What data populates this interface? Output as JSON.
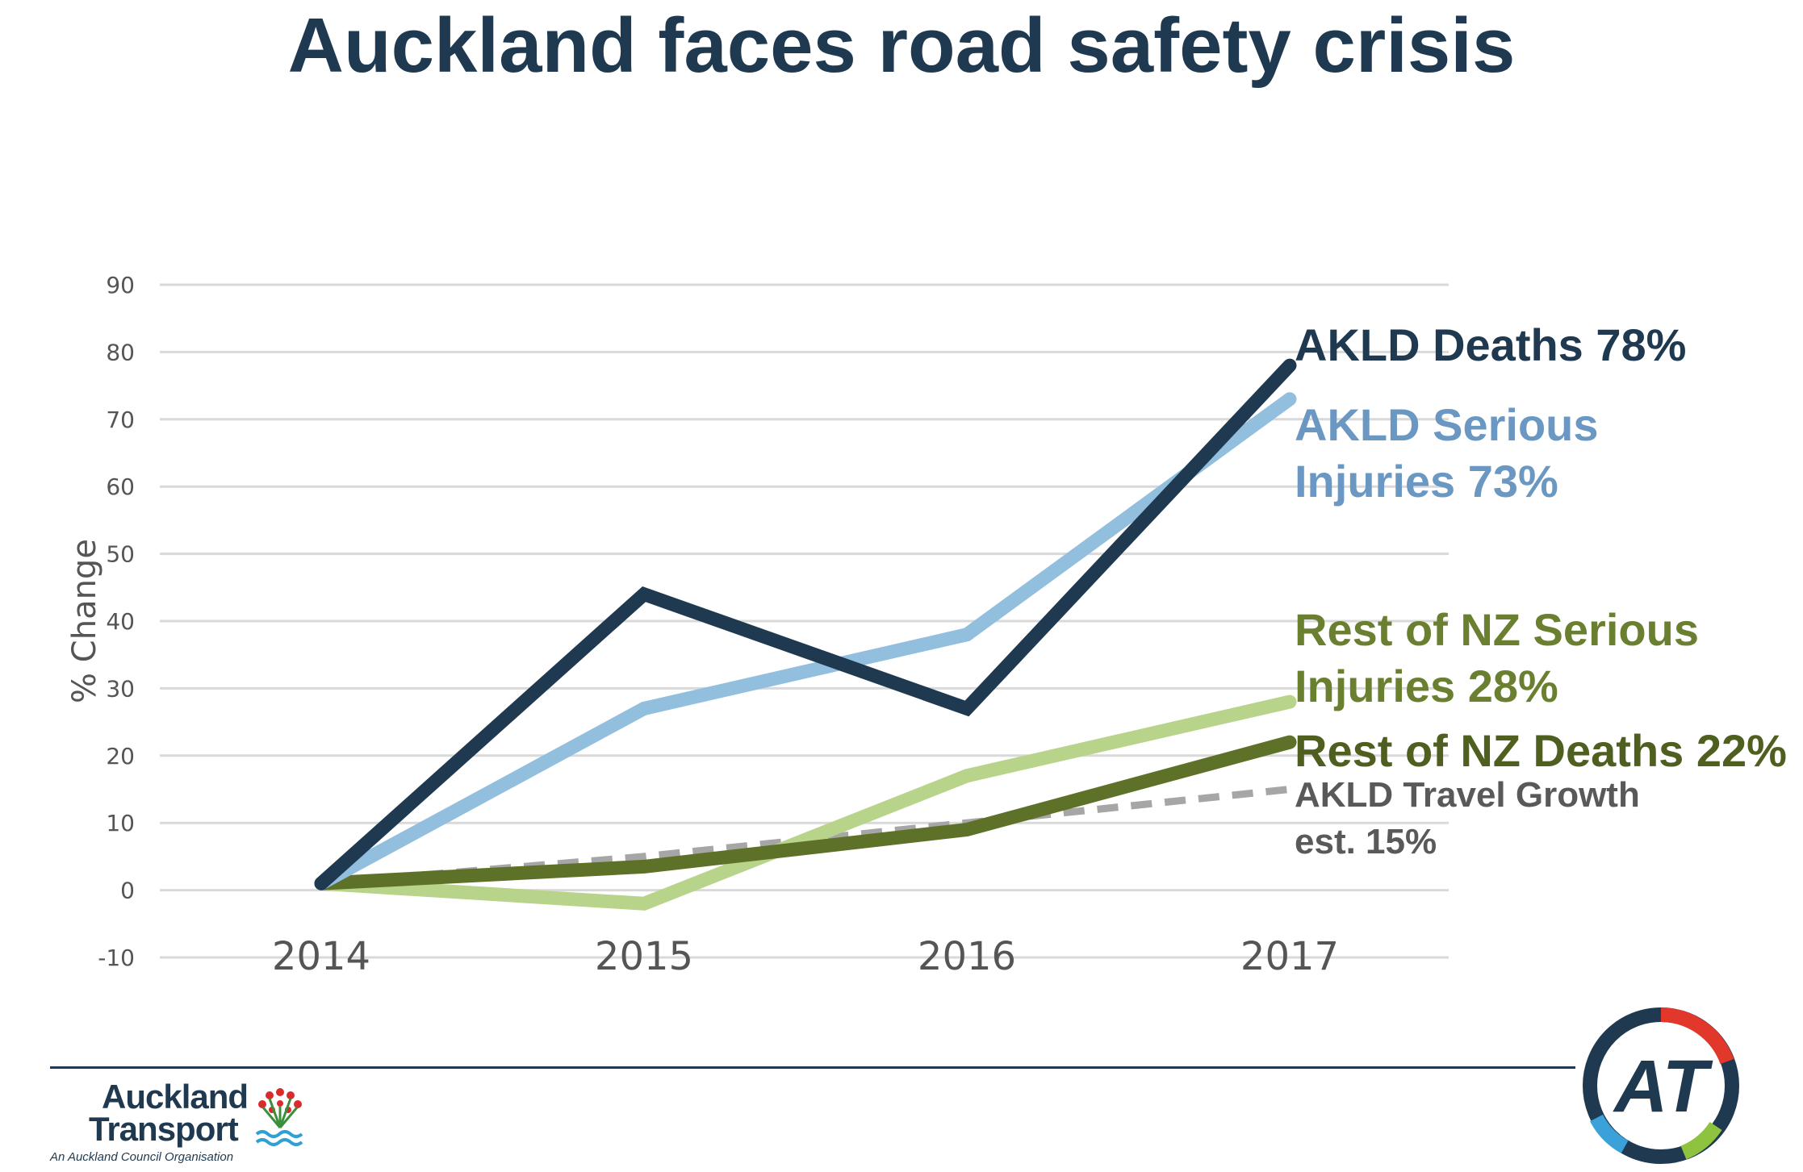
{
  "title": "Auckland faces road safety crisis",
  "chart_data": {
    "type": "line",
    "title": "Auckland faces road safety crisis",
    "xlabel": "",
    "ylabel": "% Change",
    "ylim": [
      -10,
      90
    ],
    "yticks": [
      90,
      80,
      70,
      60,
      50,
      40,
      30,
      20,
      10,
      0,
      -10
    ],
    "categories": [
      "2014",
      "2015",
      "2016",
      "2017"
    ],
    "grid": true,
    "series": [
      {
        "name": "AKLD Deaths",
        "label_lines": [
          "AKLD Deaths 78%"
        ],
        "values": [
          1,
          44,
          27,
          78
        ],
        "color": "#1f3a50",
        "dashed": false
      },
      {
        "name": "AKLD Serious Injuries",
        "label_lines": [
          "AKLD Serious",
          "Injuries 73%"
        ],
        "values": [
          1,
          27,
          38,
          73
        ],
        "color": "#93bfdf",
        "dashed": false
      },
      {
        "name": "Rest of NZ Serious Injuries",
        "label_lines": [
          "Rest of NZ Serious",
          "Injuries 28%"
        ],
        "values": [
          1,
          -2,
          17,
          28
        ],
        "color": "#b8d38a",
        "dashed": false
      },
      {
        "name": "Rest of NZ Deaths",
        "label_lines": [
          "Rest of NZ Deaths 22%"
        ],
        "values": [
          1,
          3.5,
          9,
          22
        ],
        "color": "#5e7128",
        "dashed": false
      },
      {
        "name": "AKLD Travel Growth",
        "label_lines": [
          "AKLD Travel Growth",
          "est. 15%"
        ],
        "values": [
          1,
          5,
          10,
          15
        ],
        "color": "#a6a6a6",
        "dashed": true
      }
    ]
  },
  "label_colors": {
    "AKLD Deaths": "#1f3a50",
    "AKLD Serious Injuries": "#6b98c3",
    "Rest of NZ Serious Injuries": "#6b7f31",
    "Rest of NZ Deaths": "#4f5f1f",
    "AKLD Travel Growth": "#595959"
  },
  "footer": {
    "logo_line1": "Auckland",
    "logo_line2": "Transport",
    "logo_tagline": "An Auckland Council Organisation",
    "badge_text": "AT"
  }
}
